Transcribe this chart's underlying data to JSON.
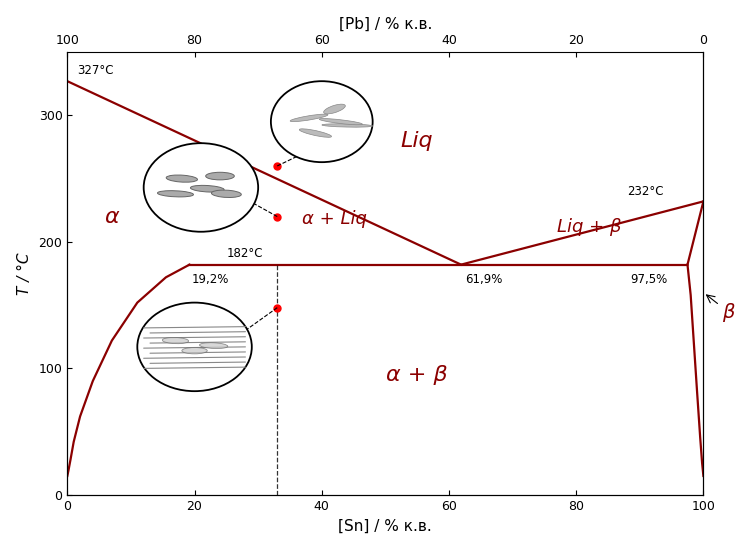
{
  "line_color": "#8B0000",
  "bg_color": "#ffffff",
  "text_color_dark": "#333333",
  "text_color_red": "#8B0000",
  "xlabel_bottom": "[Sn] / % к.в.",
  "xlabel_top": "[Pb] / % к.в.",
  "ylabel": "T / °С",
  "xlim": [
    0,
    100
  ],
  "ylim": [
    0,
    350
  ],
  "dashed_x": 33,
  "point1": [
    33,
    260
  ],
  "point2": [
    33,
    220
  ],
  "point3": [
    33,
    148
  ],
  "label_327": "327°C",
  "label_232": "232°C",
  "label_182": "182°C",
  "label_19": "19,2%",
  "label_62": "61,9%",
  "label_97": "97,5%",
  "label_liq": "Liq",
  "label_alpha": "α",
  "label_alpha_liq": "α + Liq",
  "label_liq_beta": "Liq + β",
  "label_alpha_beta": "α + β",
  "label_beta": "β",
  "eutectic_T": 182,
  "eutectic_x": 61.9,
  "alpha_sol_x": 19.2,
  "beta_sol_x": 97.5,
  "pb_melt_T": 327,
  "sn_melt_T": 232
}
